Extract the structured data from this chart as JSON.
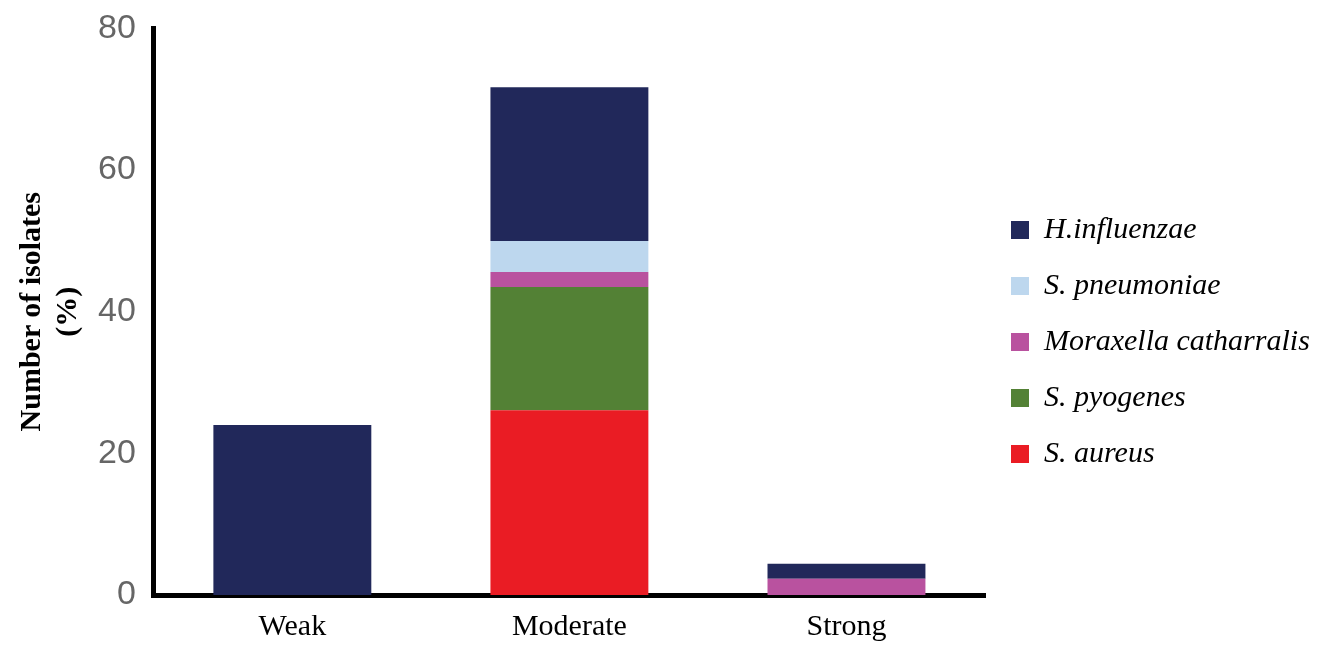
{
  "chart_data": {
    "type": "bar",
    "stacked": true,
    "categories": [
      "Weak",
      "Moderate",
      "Strong"
    ],
    "ylabel": "Number of isolates (%)",
    "ylim": [
      0,
      80
    ],
    "yticks": [
      0,
      20,
      40,
      60,
      80
    ],
    "grid": false,
    "legend": "right",
    "series": [
      {
        "name": "S. aureus",
        "color": "#ea1c24",
        "values": [
          0,
          26.1,
          0
        ]
      },
      {
        "name": "S. pyogenes",
        "color": "#538135",
        "values": [
          0,
          17.4,
          0
        ]
      },
      {
        "name": "Moraxella catharralis",
        "color": "#b9529f",
        "values": [
          0,
          2.1,
          2.3
        ]
      },
      {
        "name": "S. pneumoniae",
        "color": "#bdd7ee",
        "values": [
          0,
          4.4,
          0
        ]
      },
      {
        "name": "H.influenzae",
        "color": "#21285a",
        "values": [
          24,
          21.7,
          2.1
        ]
      }
    ]
  }
}
